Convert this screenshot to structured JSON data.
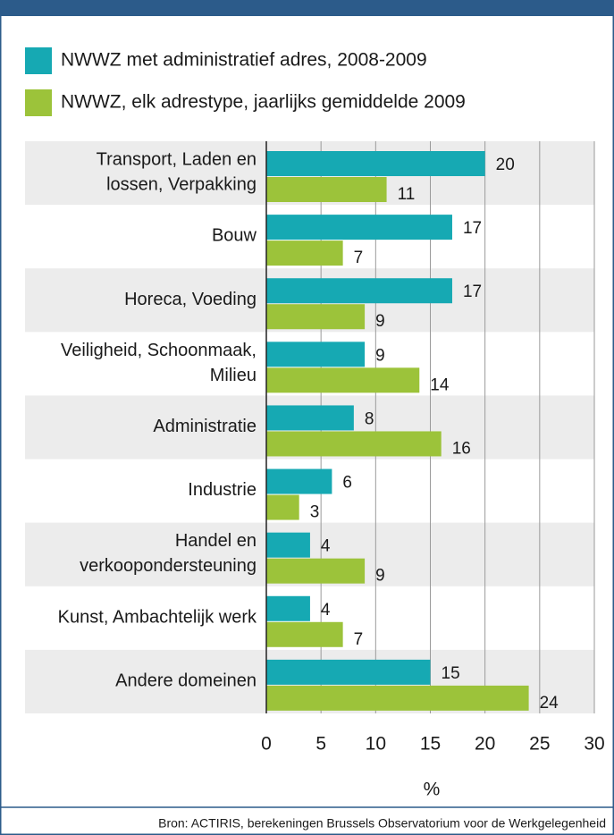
{
  "chart_data": {
    "type": "bar",
    "orientation": "horizontal",
    "categories": [
      [
        "Transport, Laden en",
        "lossen, Verpakking"
      ],
      [
        "Bouw"
      ],
      [
        "Horeca, Voeding"
      ],
      [
        "Veiligheid, Schoonmaak,",
        "Milieu"
      ],
      [
        "Administratie"
      ],
      [
        "Industrie"
      ],
      [
        "Handel en",
        "verkoopondersteuning"
      ],
      [
        "Kunst, Ambachtelijk werk"
      ],
      [
        "Andere domeinen"
      ]
    ],
    "series": [
      {
        "name": "NWWZ met administratief adres, 2008-2009",
        "color": "#16a9b3",
        "values": [
          20,
          17,
          17,
          9,
          8,
          6,
          4,
          4,
          15
        ]
      },
      {
        "name": "NWWZ, elk adrestype, jaarlijks gemiddelde 2009",
        "color": "#9cc33a",
        "values": [
          11,
          7,
          9,
          14,
          16,
          3,
          9,
          7,
          24
        ]
      }
    ],
    "xlim": [
      0,
      30
    ],
    "xticks": [
      0,
      5,
      10,
      15,
      20,
      25,
      30
    ],
    "xlabel": "%",
    "grid": true,
    "source": "Bron: ACTIRIS, berekeningen Brussels Observatorium voor de Werkgelegenheid"
  }
}
